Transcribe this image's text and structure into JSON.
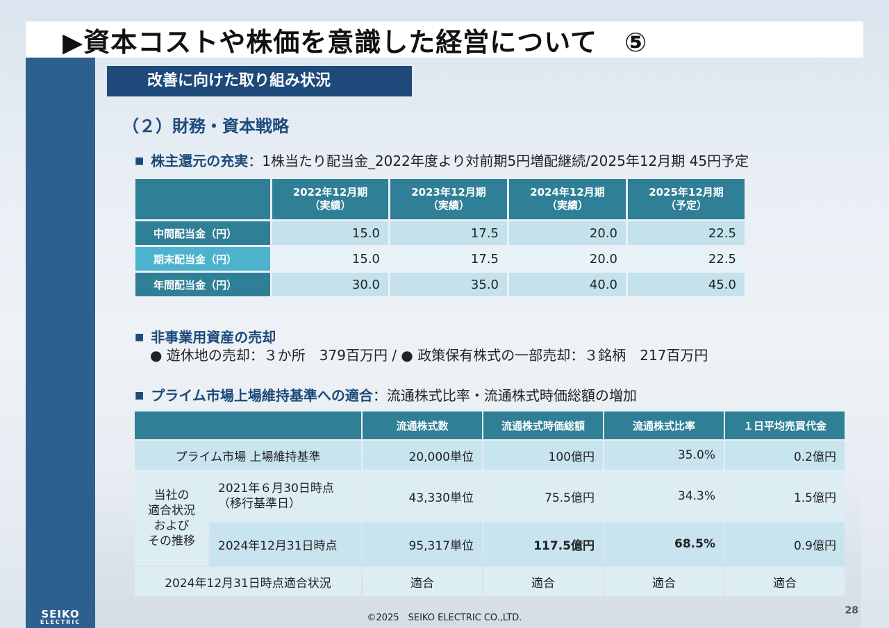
{
  "title": "▶資本コストや株価を意識した経営について　⑤",
  "banner": "改善に向けた取り組み状況",
  "sub_heading": "（２）財務・資本戦略",
  "shareholder": {
    "marker": "■",
    "label": "株主還元の充実",
    "text": "：1株当たり配当金_2022年度より対前期5円増配継続/2025年12月期 45円予定",
    "headers": [
      [
        "2022年12月期",
        "（実績）"
      ],
      [
        "2023年12月期",
        "（実績）"
      ],
      [
        "2024年12月期",
        "（実績）"
      ],
      [
        "2025年12月期",
        "（予定）"
      ]
    ],
    "rows": [
      {
        "label": "中間配当金（円）",
        "values": [
          "15.0",
          "17.5",
          "20.0",
          "22.5"
        ]
      },
      {
        "label": "期末配当金（円）",
        "values": [
          "15.0",
          "17.5",
          "20.0",
          "22.5"
        ]
      },
      {
        "label": "年間配当金（円）",
        "values": [
          "30.0",
          "35.0",
          "40.0",
          "45.0"
        ]
      }
    ]
  },
  "non_business": {
    "marker": "■",
    "label": "非事業用資産の売却",
    "detail": "●  遊休地の売却：３か所　379百万円 / ●  政策保有株式の一部売却：３銘柄　217百万円"
  },
  "prime": {
    "marker": "■",
    "label": "プライム市場上場維持基準への適合",
    "text": "：流通株式比率・流通株式時価総額の増加",
    "headers": [
      "流通株式数",
      "流通株式時価総額",
      "流通株式比率",
      "１日平均売買代金"
    ],
    "standard": {
      "label": "プライム市場 上場維持基準",
      "values": [
        "20,000単位",
        "100億円",
        "35.0%",
        "0.2億円"
      ]
    },
    "group_label": [
      "当社の",
      "適合状況",
      "および",
      "その推移"
    ],
    "row_2021": {
      "label": [
        "2021年６月30日時点",
        "（移行基準日）"
      ],
      "values": [
        "43,330単位",
        "75.5億円",
        "34.3%",
        "1.5億円"
      ]
    },
    "row_2024": {
      "label": "2024年12月31日時点",
      "values": [
        "95,317単位",
        "117.5億円",
        "68.5%",
        "0.9億円"
      ]
    },
    "status": {
      "label": "2024年12月31日時点適合状況",
      "values": [
        "適合",
        "適合",
        "適合",
        "適合"
      ]
    }
  },
  "logo": {
    "line1": "SEIKO",
    "line2": "ELECTRIC"
  },
  "footer": "©2025　SEIKO ELECTRIC CO.,LTD.",
  "page_number": "28",
  "colors": {
    "navy": "#1d4a7a",
    "teal": "#2f7f96",
    "cyan": "#4db3cc",
    "cell": "#c3e2ec"
  }
}
